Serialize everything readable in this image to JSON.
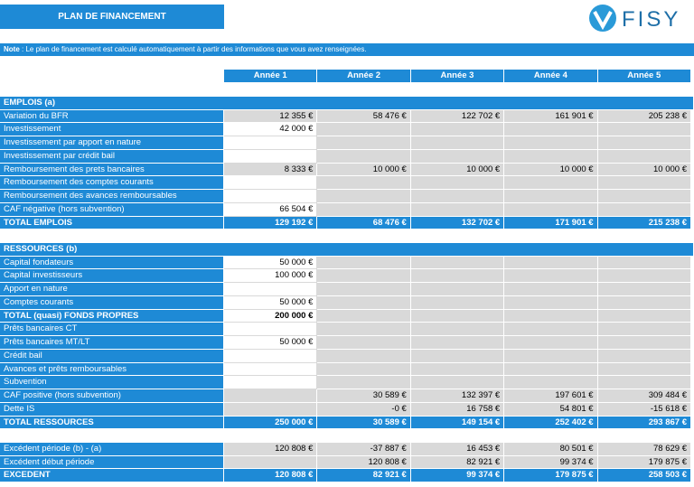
{
  "header": {
    "title": "PLAN DE FINANCEMENT",
    "logo": "FISY"
  },
  "note": {
    "label": "Note",
    "text": ": Le plan de financement est calculé automatiquement à partir des informations que vous avez renseignées."
  },
  "table": {
    "columns": [
      "Année 1",
      "Année 2",
      "Année 3",
      "Année 4",
      "Année 5"
    ],
    "sections": [
      {
        "title": "EMPLOIS (a)",
        "rows": [
          {
            "label": "Variation du BFR",
            "values": [
              "12 355 €",
              "58 476 €",
              "122 702 €",
              "161 901 €",
              "205 238 €"
            ]
          },
          {
            "label": "Investissement",
            "kind": "input",
            "values": [
              "42 000 €",
              null,
              null,
              null,
              null
            ]
          },
          {
            "label": "Investissement par apport en nature",
            "kind": "input",
            "values": [
              null,
              null,
              null,
              null,
              null
            ]
          },
          {
            "label": "Investissement par crédit bail",
            "kind": "input",
            "values": [
              null,
              null,
              null,
              null,
              null
            ]
          },
          {
            "label": "Remboursement des prets bancaires",
            "values": [
              "8 333 €",
              "10 000 €",
              "10 000 €",
              "10 000 €",
              "10 000 €"
            ]
          },
          {
            "label": "Remboursement des comptes courants",
            "kind": "input",
            "values": [
              null,
              null,
              null,
              null,
              null
            ]
          },
          {
            "label": "Remboursement des avances remboursables",
            "kind": "input",
            "values": [
              null,
              null,
              null,
              null,
              null
            ]
          },
          {
            "label": "CAF négative (hors subvention)",
            "kind": "input",
            "values": [
              "66 504 €",
              null,
              null,
              null,
              null
            ]
          },
          {
            "label": "TOTAL EMPLOIS",
            "kind": "total",
            "values": [
              "129 192 €",
              "68 476 €",
              "132 702 €",
              "171 901 €",
              "215 238 €"
            ]
          }
        ]
      },
      {
        "title": "RESSOURCES (b)",
        "rows": [
          {
            "label": "Capital fondateurs",
            "kind": "input",
            "values": [
              "50 000 €",
              null,
              null,
              null,
              null
            ]
          },
          {
            "label": "Capital investisseurs",
            "kind": "input",
            "values": [
              "100 000 €",
              null,
              null,
              null,
              null
            ]
          },
          {
            "label": "Apport en nature",
            "kind": "input",
            "values": [
              null,
              null,
              null,
              null,
              null
            ]
          },
          {
            "label": "Comptes courants",
            "kind": "input",
            "values": [
              "50 000 €",
              null,
              null,
              null,
              null
            ]
          },
          {
            "label": "TOTAL (quasi) FONDS PROPRES",
            "kind": "subtotal",
            "values": [
              "200 000 €",
              null,
              null,
              null,
              null
            ]
          },
          {
            "label": "Prêts bancaires CT",
            "kind": "input",
            "values": [
              null,
              null,
              null,
              null,
              null
            ]
          },
          {
            "label": "Prêts bancaires MT/LT",
            "kind": "input",
            "values": [
              "50 000 €",
              null,
              null,
              null,
              null
            ]
          },
          {
            "label": "Crédit bail",
            "kind": "input",
            "values": [
              null,
              null,
              null,
              null,
              null
            ]
          },
          {
            "label": "Avances et prêts remboursables",
            "kind": "input",
            "values": [
              null,
              null,
              null,
              null,
              null
            ]
          },
          {
            "label": "Subvention",
            "kind": "input",
            "values": [
              null,
              null,
              null,
              null,
              null
            ]
          },
          {
            "label": "CAF positive (hors subvention)",
            "values": [
              null,
              "30 589 €",
              "132 397 €",
              "197 601 €",
              "309 484 €"
            ]
          },
          {
            "label": "Dette IS",
            "values": [
              null,
              "-0 €",
              "16 758 €",
              "54 801 €",
              "-15 618 €"
            ]
          },
          {
            "label": "TOTAL RESSOURCES",
            "kind": "total",
            "values": [
              "250 000 €",
              "30 589 €",
              "149 154 €",
              "252 402 €",
              "293 867 €"
            ]
          }
        ]
      },
      {
        "rows": [
          {
            "label": "Excédent période (b) - (a)",
            "values": [
              "120 808 €",
              "-37 887 €",
              "16 453 €",
              "80 501 €",
              "78 629 €"
            ]
          },
          {
            "label": "Excédent début période",
            "values": [
              null,
              "120 808 €",
              "82 921 €",
              "99 374 €",
              "179 875 €"
            ]
          },
          {
            "label": "EXCEDENT",
            "kind": "total",
            "values": [
              "120 808 €",
              "82 921 €",
              "99 374 €",
              "179 875 €",
              "258 503 €"
            ]
          }
        ]
      }
    ]
  }
}
